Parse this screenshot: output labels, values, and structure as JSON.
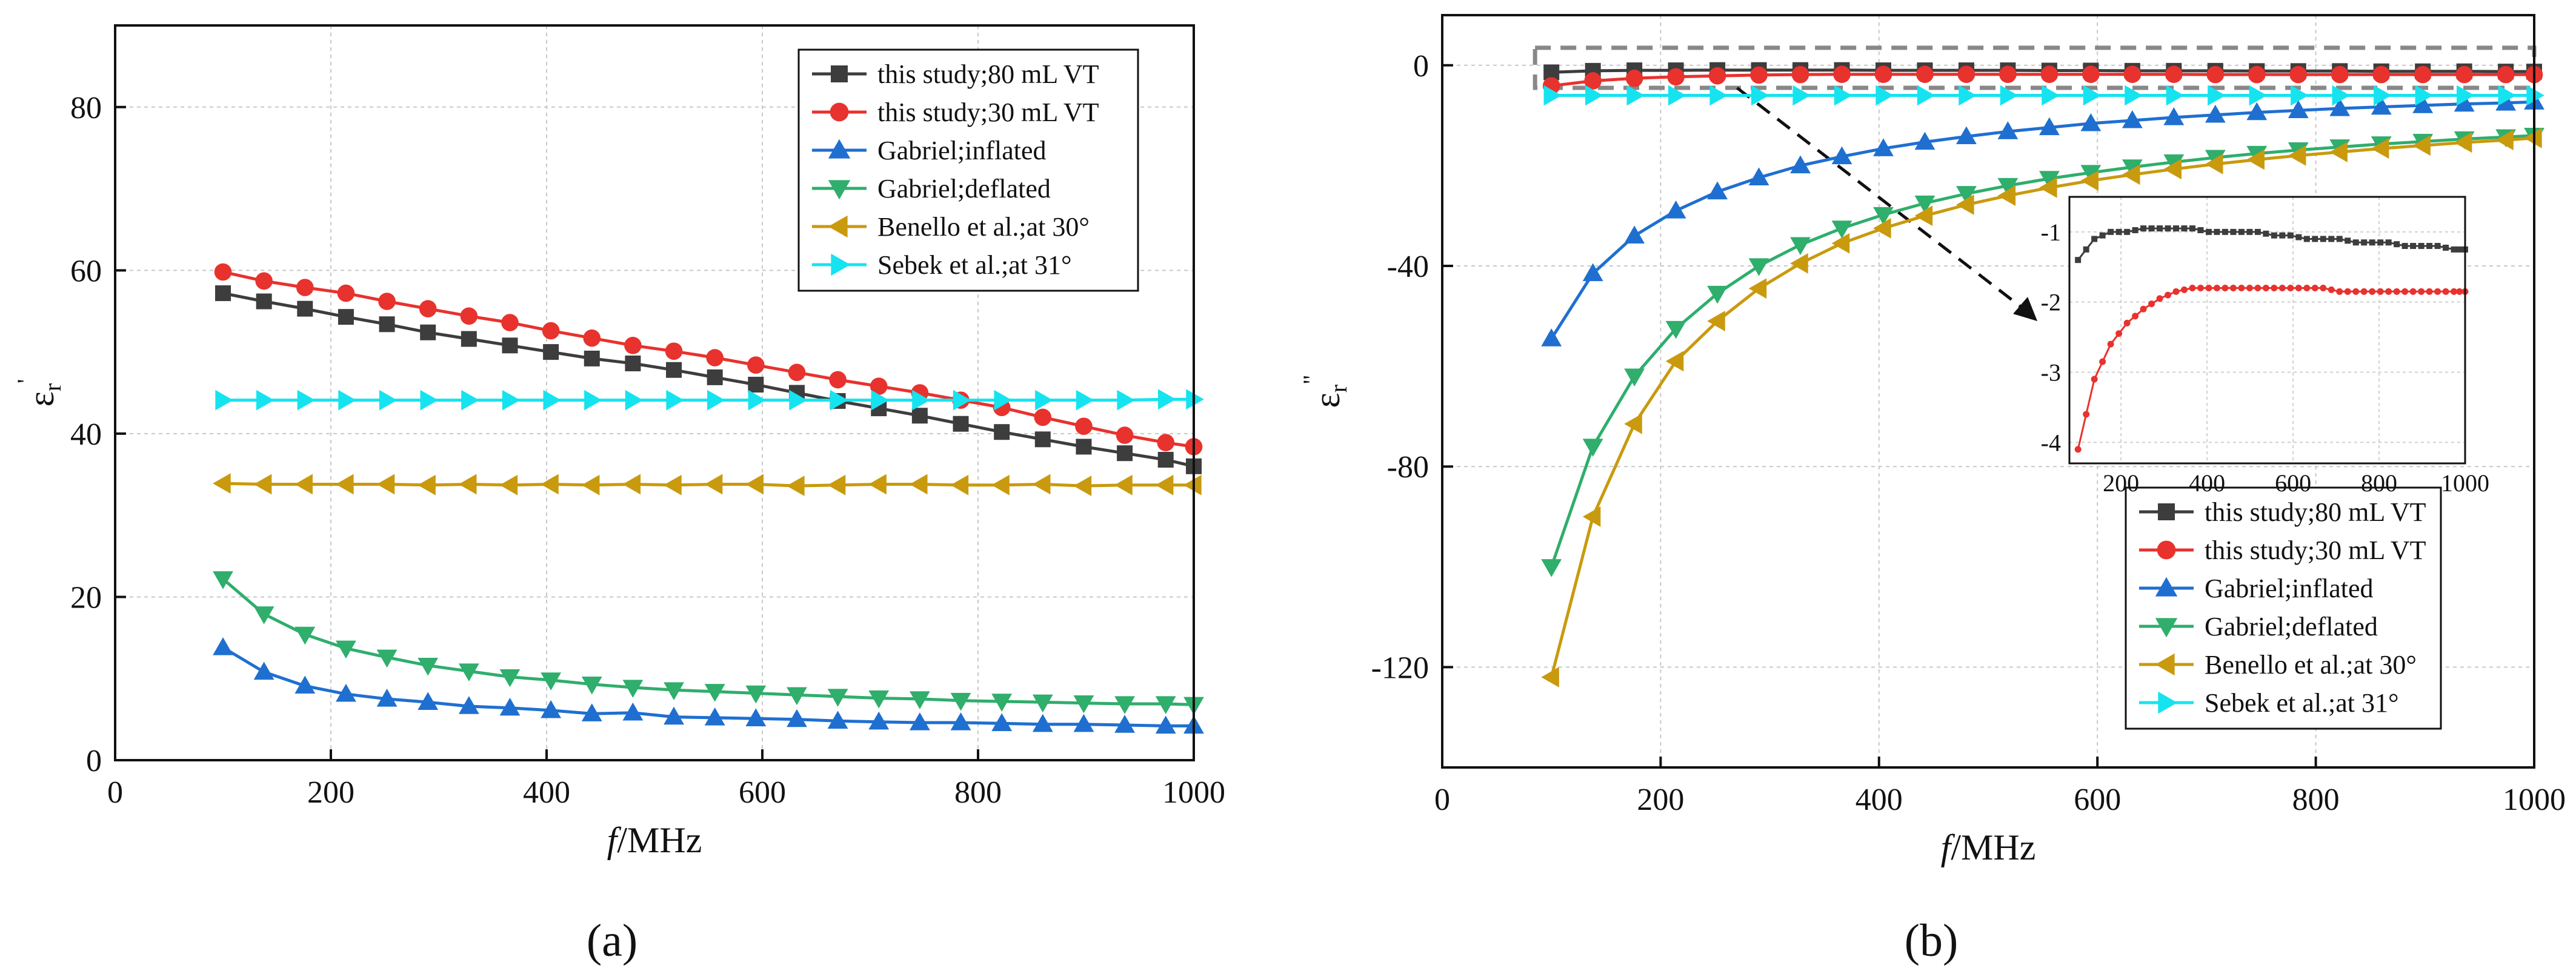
{
  "chart_data": [
    {
      "panel_label": "(a)",
      "type": "line",
      "xlabel_italic": "f",
      "xlabel_unit": "/MHz",
      "ylabel_base": "ε",
      "ylabel_sub": "r",
      "ylabel_sup": "'",
      "xlim": [
        0,
        1000
      ],
      "ylim": [
        0,
        90
      ],
      "xticks": [
        0,
        200,
        400,
        600,
        800,
        1000
      ],
      "yticks": [
        0,
        20,
        40,
        60,
        80
      ],
      "grid": true,
      "legend_position": "top-right",
      "x": [
        100,
        138,
        176,
        214,
        252,
        290,
        328,
        366,
        404,
        442,
        480,
        518,
        556,
        594,
        632,
        670,
        708,
        746,
        784,
        822,
        860,
        898,
        936,
        974,
        1000
      ],
      "series": [
        {
          "name": "this study;80 mL VT",
          "color": "#3d3d3d",
          "marker": "square",
          "values": [
            57.2,
            56.2,
            55.3,
            54.3,
            53.4,
            52.4,
            51.6,
            50.8,
            50.0,
            49.2,
            48.6,
            47.8,
            46.9,
            46.0,
            45.0,
            44.0,
            43.1,
            42.2,
            41.2,
            40.2,
            39.3,
            38.4,
            37.6,
            36.8,
            36.0
          ]
        },
        {
          "name": "this study;30 mL VT",
          "color": "#e8322e",
          "marker": "circle",
          "values": [
            59.8,
            58.7,
            57.9,
            57.2,
            56.2,
            55.3,
            54.4,
            53.6,
            52.6,
            51.7,
            50.8,
            50.1,
            49.3,
            48.4,
            47.5,
            46.6,
            45.8,
            45.0,
            44.1,
            43.2,
            42.0,
            40.9,
            39.8,
            38.9,
            38.4
          ]
        },
        {
          "name": "Gabriel;inflated",
          "color": "#1f6fd1",
          "marker": "triangle-up",
          "values": [
            13.8,
            10.8,
            9.1,
            8.1,
            7.5,
            7.1,
            6.6,
            6.4,
            6.1,
            5.7,
            5.8,
            5.3,
            5.2,
            5.1,
            5.0,
            4.8,
            4.7,
            4.6,
            4.6,
            4.5,
            4.4,
            4.4,
            4.3,
            4.2,
            4.2
          ]
        },
        {
          "name": "Gabriel;deflated",
          "color": "#2fae6c",
          "marker": "triangle-down",
          "values": [
            22.2,
            17.9,
            15.4,
            13.7,
            12.6,
            11.6,
            10.9,
            10.2,
            9.8,
            9.3,
            8.9,
            8.6,
            8.4,
            8.2,
            8.0,
            7.8,
            7.6,
            7.5,
            7.3,
            7.2,
            7.1,
            7.0,
            6.9,
            6.9,
            6.8
          ]
        },
        {
          "name": "Benello et al.;at 30°",
          "color": "#c99a0e",
          "marker": "triangle-left",
          "values": [
            33.9,
            33.8,
            33.8,
            33.8,
            33.8,
            33.7,
            33.8,
            33.7,
            33.8,
            33.7,
            33.8,
            33.7,
            33.8,
            33.8,
            33.6,
            33.7,
            33.8,
            33.8,
            33.7,
            33.7,
            33.8,
            33.6,
            33.7,
            33.7,
            33.7
          ]
        },
        {
          "name": "Sebek et al.;at 31°",
          "color": "#16e3f0",
          "marker": "triangle-right",
          "values": [
            44.1,
            44.1,
            44.1,
            44.1,
            44.1,
            44.1,
            44.1,
            44.1,
            44.1,
            44.1,
            44.1,
            44.1,
            44.1,
            44.1,
            44.1,
            44.1,
            44.1,
            44.1,
            44.1,
            44.1,
            44.1,
            44.1,
            44.1,
            44.2,
            44.2
          ]
        }
      ]
    },
    {
      "panel_label": "(b)",
      "type": "line",
      "xlabel_italic": "f",
      "xlabel_unit": "/MHz",
      "ylabel_base": "ε",
      "ylabel_sub": "r",
      "ylabel_sup": "\"",
      "xlim": [
        0,
        1000
      ],
      "ylim": [
        -140,
        10
      ],
      "xticks": [
        0,
        200,
        400,
        600,
        800,
        1000
      ],
      "yticks": [
        0,
        -40,
        -80,
        -120
      ],
      "grid": true,
      "legend_position": "bottom-right",
      "annotation": "dashed zoom box around the near-zero curves with a dashed arrow pointing to the inset",
      "x": [
        100,
        138,
        176,
        214,
        252,
        290,
        328,
        366,
        404,
        442,
        480,
        518,
        556,
        594,
        632,
        670,
        708,
        746,
        784,
        822,
        860,
        898,
        936,
        974,
        1000
      ],
      "series": [
        {
          "name": "this study;80 mL VT",
          "color": "#3d3d3d",
          "marker": "square",
          "values": [
            -1.4,
            -1.1,
            -1.0,
            -1.0,
            -0.95,
            -0.95,
            -0.95,
            -0.95,
            -1.0,
            -1.0,
            -1.0,
            -1.0,
            -1.05,
            -1.05,
            -1.1,
            -1.1,
            -1.1,
            -1.15,
            -1.15,
            -1.15,
            -1.2,
            -1.2,
            -1.2,
            -1.25,
            -1.25
          ]
        },
        {
          "name": "this study;30 mL VT",
          "color": "#e8322e",
          "marker": "circle",
          "values": [
            -4.1,
            -3.1,
            -2.6,
            -2.3,
            -2.1,
            -1.95,
            -1.85,
            -1.8,
            -1.8,
            -1.8,
            -1.8,
            -1.8,
            -1.8,
            -1.8,
            -1.8,
            -1.8,
            -1.85,
            -1.85,
            -1.85,
            -1.85,
            -1.85,
            -1.85,
            -1.85,
            -1.85,
            -1.85
          ]
        },
        {
          "name": "Gabriel;inflated",
          "color": "#1f6fd1",
          "marker": "triangle-up",
          "values": [
            -54.5,
            -41.5,
            -34.0,
            -29.0,
            -25.2,
            -22.4,
            -20.0,
            -18.2,
            -16.6,
            -15.3,
            -14.2,
            -13.2,
            -12.4,
            -11.6,
            -11.0,
            -10.4,
            -9.9,
            -9.4,
            -9.0,
            -8.6,
            -8.3,
            -8.0,
            -7.7,
            -7.5,
            -7.3
          ]
        },
        {
          "name": "Gabriel;deflated",
          "color": "#2fae6c",
          "marker": "triangle-down",
          "values": [
            -100.0,
            -76.0,
            -62.0,
            -52.5,
            -45.5,
            -40.0,
            -35.8,
            -32.5,
            -29.8,
            -27.5,
            -25.6,
            -24.0,
            -22.6,
            -21.4,
            -20.3,
            -19.3,
            -18.4,
            -17.6,
            -16.9,
            -16.3,
            -15.7,
            -15.2,
            -14.7,
            -14.3,
            -14.0
          ]
        },
        {
          "name": "Benello et al.;at 30°",
          "color": "#c99a0e",
          "marker": "triangle-left",
          "values": [
            -122.0,
            -90.0,
            -71.5,
            -59.0,
            -51.0,
            -44.5,
            -39.5,
            -35.5,
            -32.5,
            -30.0,
            -27.8,
            -26.0,
            -24.4,
            -23.0,
            -21.8,
            -20.7,
            -19.7,
            -18.8,
            -18.0,
            -17.3,
            -16.6,
            -16.0,
            -15.4,
            -14.9,
            -14.5
          ]
        },
        {
          "name": "Sebek et al.;at 31°",
          "color": "#16e3f0",
          "marker": "triangle-right",
          "values": [
            -6.0,
            -6.0,
            -6.0,
            -6.0,
            -6.0,
            -6.0,
            -6.0,
            -6.0,
            -6.0,
            -6.0,
            -6.0,
            -6.0,
            -6.0,
            -6.0,
            -6.0,
            -6.0,
            -6.0,
            -6.0,
            -6.0,
            -6.0,
            -6.0,
            -6.0,
            -6.0,
            -6.0,
            -6.0
          ]
        }
      ],
      "inset": {
        "xlim": [
          80,
          1000
        ],
        "ylim": [
          -4.3,
          -0.5
        ],
        "xticks": [
          200,
          400,
          600,
          800,
          1000
        ],
        "yticks": [
          -1,
          -2,
          -3,
          -4
        ],
        "series_names": [
          "this study;80 mL VT",
          "this study;30 mL VT"
        ]
      }
    }
  ]
}
